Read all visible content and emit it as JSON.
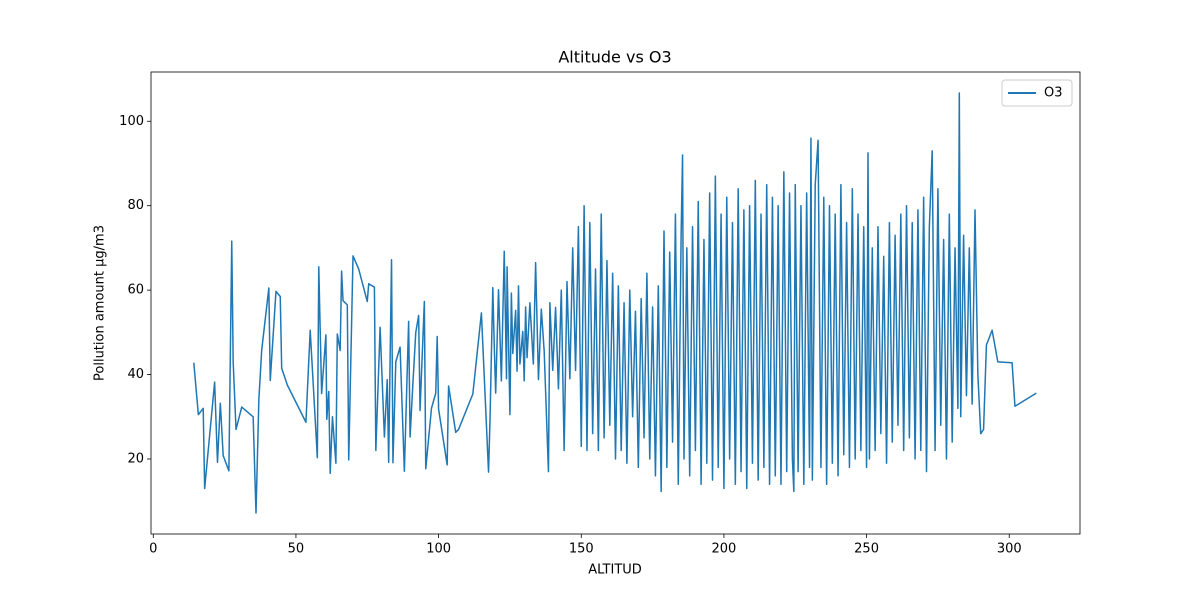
{
  "chart_data": {
    "type": "line",
    "title": "Altitude vs O3",
    "x_label": "ALTITUD",
    "y_label": "Pollution amount µg/m3",
    "xlim": [
      -0.8,
      324.8
    ],
    "ylim": [
      2.23,
      111.67
    ],
    "xticks": [
      0,
      50,
      100,
      150,
      200,
      250,
      300
    ],
    "yticks": [
      20,
      40,
      60,
      80,
      100
    ],
    "legend": "upper right",
    "x": [
      14.2,
      15.8,
      17.5,
      18,
      21.5,
      22.5,
      23.5,
      24.5,
      26.5,
      27.5,
      28,
      29,
      31,
      35,
      36,
      37,
      38,
      40.5,
      41,
      43,
      44.5,
      45,
      47,
      53.5,
      55,
      57.5,
      58,
      59,
      60.5,
      60.8,
      61.5,
      62,
      62.8,
      64,
      64.5,
      65.5,
      66,
      66.5,
      68,
      68.5,
      70,
      72,
      75,
      75.5,
      77.5,
      78,
      79.5,
      81,
      82,
      82.5,
      83.5,
      84,
      85,
      86.5,
      88,
      89.5,
      90,
      91,
      92,
      93,
      93.5,
      95,
      95.5,
      97.5,
      99,
      99.5,
      100,
      103,
      103.5,
      106,
      107,
      112,
      115,
      117.5,
      118,
      119,
      119.5,
      120,
      121,
      122,
      123,
      123.8,
      124,
      125,
      125.5,
      126,
      127,
      127.5,
      128,
      128.5,
      129.5,
      130,
      130.5,
      131,
      132,
      133.2,
      134,
      135,
      136,
      137,
      138.5,
      139,
      140,
      141,
      142,
      143,
      144,
      145,
      146,
      147,
      148,
      149,
      150,
      151,
      152,
      153,
      154,
      155,
      156,
      157,
      158,
      159,
      160,
      161,
      162,
      163,
      164,
      165,
      166,
      167,
      168,
      169,
      170,
      171,
      172,
      173,
      174,
      175,
      176,
      177,
      178,
      179,
      180,
      181,
      182,
      183,
      184,
      185,
      185.5,
      186,
      187,
      188,
      189,
      190,
      191,
      192,
      193,
      194,
      195,
      196,
      197,
      198,
      199,
      200,
      201,
      202,
      203,
      204,
      205,
      206,
      207,
      208,
      209,
      210,
      211,
      212,
      213,
      214,
      215,
      216,
      217,
      218,
      219,
      220,
      221,
      222,
      223,
      224,
      224.5,
      225,
      226,
      227,
      228,
      229,
      230,
      230.5,
      231,
      232,
      233,
      234,
      235,
      236,
      237,
      238,
      239,
      240,
      241,
      242,
      243,
      244,
      245,
      246,
      247,
      248,
      249,
      250,
      250.5,
      251,
      252,
      253,
      254,
      255,
      256,
      257,
      258,
      259,
      260,
      261,
      262,
      263,
      264,
      265,
      266,
      267,
      268,
      269,
      270,
      271,
      272,
      273,
      274,
      275,
      276,
      277,
      278,
      279,
      280,
      281,
      282,
      282.5,
      283,
      284,
      285,
      286,
      287,
      288,
      289,
      290,
      291,
      292,
      294,
      296,
      301,
      302,
      309.5
    ],
    "series": [
      {
        "name": "O3",
        "color": "#1f77b4",
        "values": [
          42.8,
          30.5,
          32,
          13,
          38.2,
          19.2,
          33.2,
          20.8,
          17.2,
          71.6,
          43,
          27,
          32.3,
          30,
          7.2,
          34,
          45.8,
          60.5,
          38.6,
          59.7,
          58.5,
          41.5,
          37.5,
          28.7,
          50.5,
          20.3,
          65.5,
          35.5,
          49.4,
          29.4,
          36,
          16.6,
          30,
          19,
          49.6,
          45.7,
          64.5,
          57.5,
          56.5,
          19.8,
          68.1,
          65,
          57.3,
          61.5,
          60.7,
          22,
          51.2,
          25.2,
          38.8,
          19.2,
          67.2,
          19.1,
          43,
          46.5,
          17.1,
          52.6,
          25.2,
          38,
          50,
          54,
          31.5,
          57.3,
          17.7,
          32,
          35.6,
          49,
          31.8,
          18.6,
          37.3,
          26.3,
          27,
          35.4,
          54.6,
          16.9,
          28.8,
          60.6,
          47,
          35.6,
          60.1,
          38.5,
          69.2,
          39,
          65.5,
          30.5,
          59.3,
          45,
          55.2,
          40.8,
          61,
          42.5,
          50.2,
          38.5,
          56,
          44,
          57,
          42.5,
          66.5,
          38.8,
          55.5,
          45.6,
          17,
          57,
          41,
          55.9,
          36.6,
          60,
          22,
          62,
          39,
          70,
          41,
          75,
          23,
          80,
          22,
          76,
          26,
          65,
          22,
          78,
          25,
          67,
          28,
          64,
          20,
          61,
          22,
          57,
          19,
          60,
          30,
          55,
          18,
          58,
          25,
          64,
          20,
          56,
          16,
          61,
          12.3,
          74,
          18,
          69,
          24,
          78,
          14,
          73,
          92,
          20,
          70,
          16,
          75,
          22,
          81,
          14,
          72,
          19,
          83,
          15,
          87,
          18,
          78,
          13,
          82,
          20,
          76,
          14,
          84,
          17,
          79,
          13,
          80,
          19,
          86,
          15,
          78,
          18,
          85,
          14,
          82,
          16,
          80,
          14,
          88,
          17,
          83,
          20,
          12.3,
          85,
          17,
          80,
          14,
          83,
          18,
          96,
          15,
          85,
          95.5,
          18,
          82,
          14,
          80,
          19,
          78,
          16,
          85,
          21,
          76,
          18,
          84,
          20,
          78,
          22,
          75,
          18,
          92.5,
          20,
          70,
          22,
          75,
          26,
          68,
          19,
          76,
          24,
          73,
          28,
          78,
          22,
          80,
          25,
          76,
          20,
          79,
          22,
          82,
          17,
          75,
          93,
          22,
          84,
          28,
          72,
          20,
          78,
          24,
          70,
          32,
          106.7,
          30,
          73,
          35,
          70,
          33,
          79,
          40,
          26,
          27,
          47,
          50.5,
          43,
          42.8,
          32.5,
          35.6
        ]
      }
    ]
  }
}
